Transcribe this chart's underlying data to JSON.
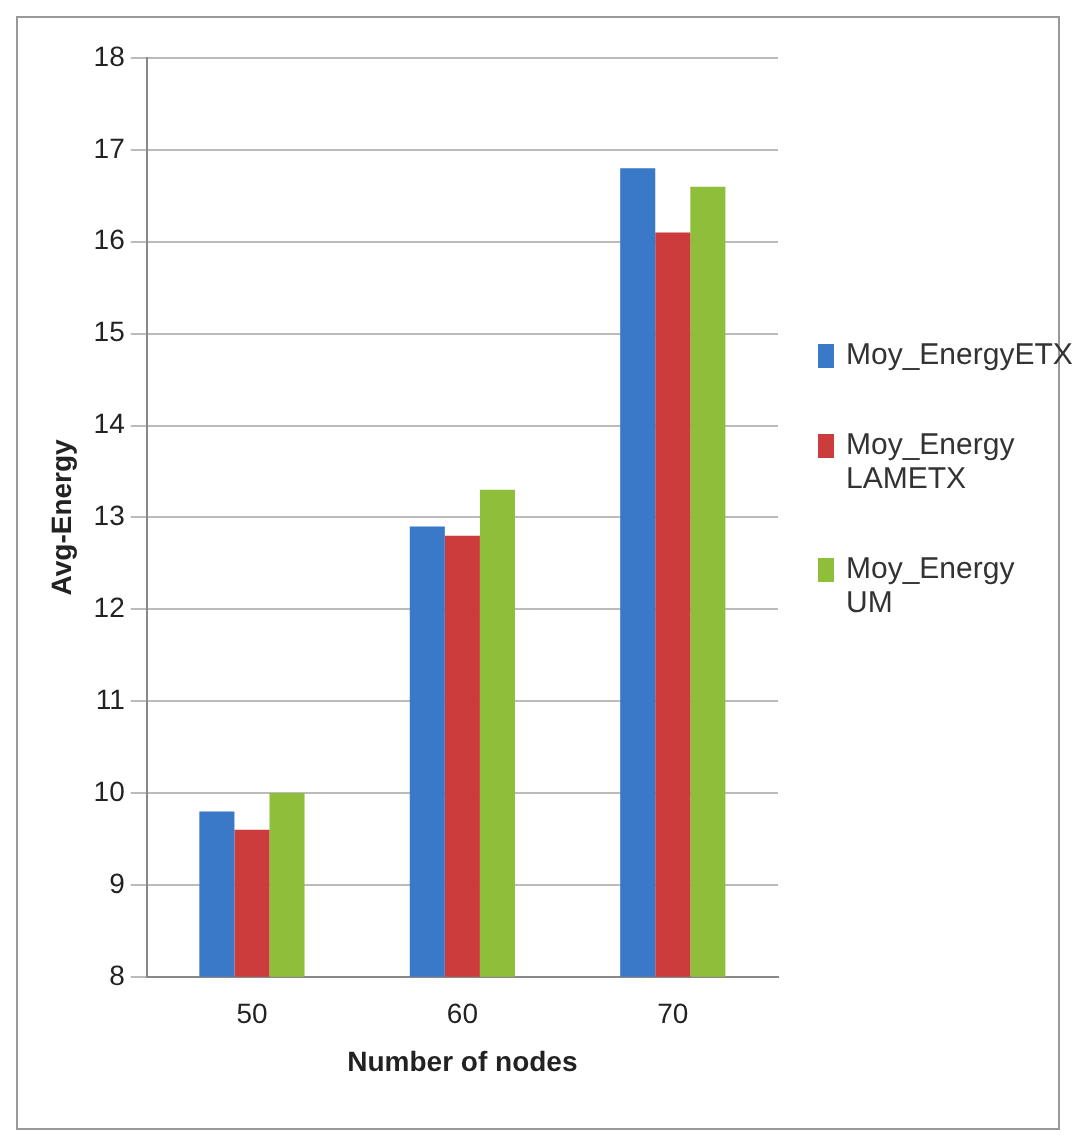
{
  "chart_data": {
    "type": "bar",
    "xlabel": "Number of nodes",
    "ylabel": "Avg-Energy",
    "categories": [
      "50",
      "60",
      "70"
    ],
    "series": [
      {
        "name": "Moy_EnergyETX",
        "color": "#3a78c8",
        "values": [
          9.8,
          12.9,
          16.8
        ]
      },
      {
        "name": "Moy_Energy LAMETX",
        "color": "#cc3c3c",
        "values": [
          9.6,
          12.8,
          16.1
        ]
      },
      {
        "name": "Moy_Energy UM",
        "color": "#8fbf3a",
        "values": [
          10.0,
          13.3,
          16.6
        ]
      }
    ],
    "ylim": [
      8,
      18
    ],
    "yticks": [
      8,
      9,
      10,
      11,
      12,
      13,
      14,
      15,
      16,
      17,
      18
    ],
    "grid": "y",
    "legend": "right"
  }
}
